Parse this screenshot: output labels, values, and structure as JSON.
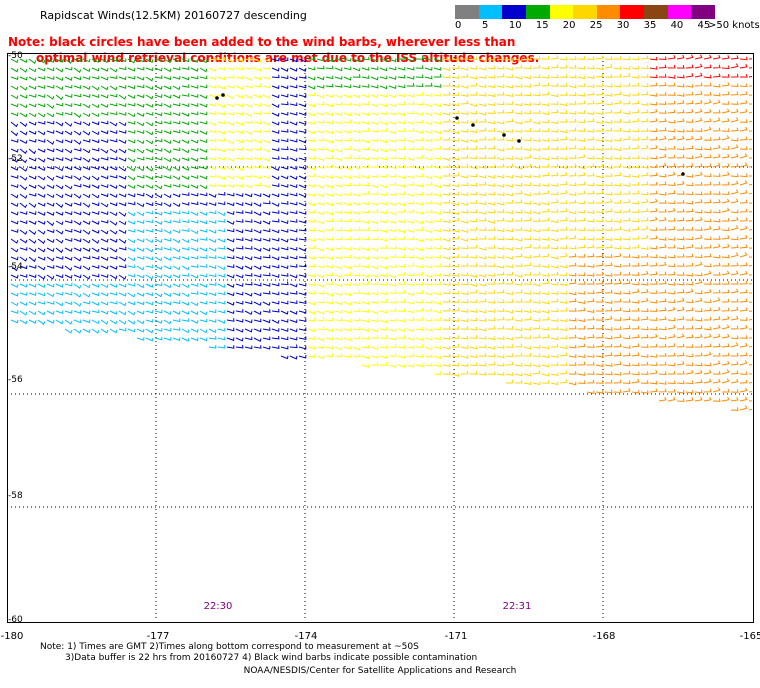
{
  "title": "Rapidscat Winds(12.5KM) 20160727 descending",
  "note": {
    "line1": "Note: black circles have been added to the wind barbs, wherever less than",
    "line2": "optimal wind retrieval conditions are met due to the ISS altitude changes."
  },
  "legend": {
    "unit_label": ">50 knots",
    "ticks": [
      "0",
      "5",
      "10",
      "15",
      "20",
      "25",
      "30",
      "35",
      "40",
      "45"
    ],
    "colors": [
      "#808080",
      "#00bfff",
      "#0000cd",
      "#00aa00",
      "#ffff00",
      "#ffd700",
      "#ff8c00",
      "#ff0000",
      "#8b4513",
      "#ff00ff",
      "#800080"
    ]
  },
  "axes": {
    "x_ticks": [
      "-180",
      "-177",
      "-174",
      "-171",
      "-168",
      "-165"
    ],
    "y_ticks": [
      "-50",
      "-52",
      "-54",
      "-56",
      "-58",
      "-60"
    ]
  },
  "times": [
    "22:30",
    "22:31"
  ],
  "footer": {
    "line1": "Note: 1) Times are GMT 2)Times along bottom correspond to measurement at ~50S",
    "line2": "3)Data buffer is 22 hrs from 20160727 4) Black wind barbs indicate possible contamination",
    "line3": "NOAA/NESDIS/Center for Satellite Applications and Research"
  }
}
